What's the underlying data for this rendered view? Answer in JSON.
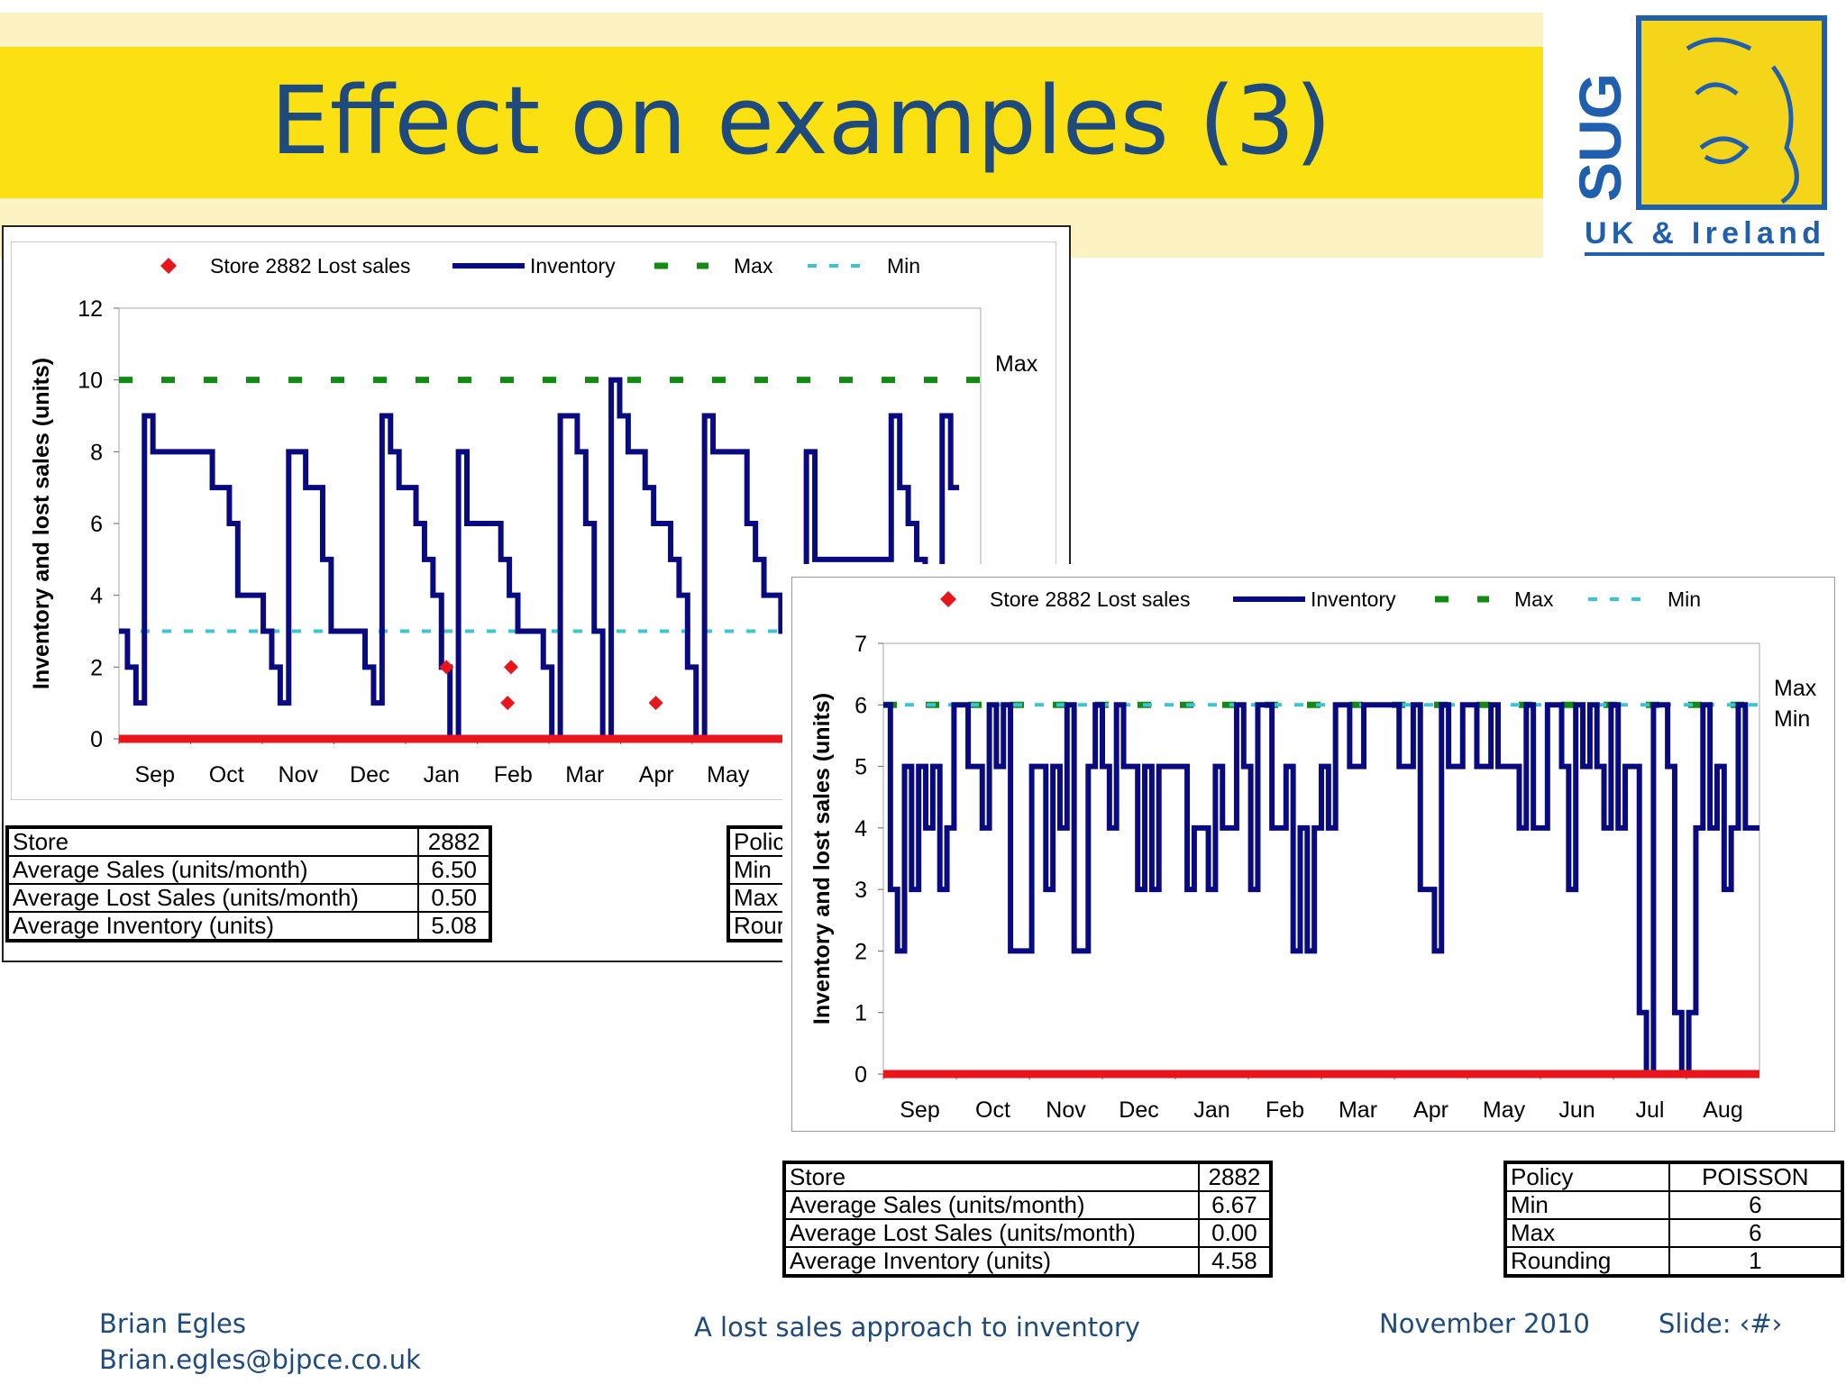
{
  "title": "Effect on examples (3)",
  "logo": {
    "letters": "SUG",
    "text": "UK & Ireland"
  },
  "chart_data": [
    {
      "type": "line",
      "legend": [
        "Store 2882 Lost sales",
        "Inventory",
        "Max",
        "Min"
      ],
      "legend_position": "top",
      "ylabel": "Inventory and lost sales (units)",
      "ylim": [
        0,
        12
      ],
      "yticks": [
        0,
        2,
        4,
        6,
        8,
        10,
        12
      ],
      "xticks": [
        "Sep",
        "Oct",
        "Nov",
        "Dec",
        "Jan",
        "Feb",
        "Mar",
        "Apr",
        "May"
      ],
      "right_labels": [
        "Max"
      ],
      "max": 10,
      "min": 3,
      "series": [
        {
          "name": "Inventory",
          "color": "#0a0a80",
          "values": [
            3,
            2,
            1,
            9,
            8,
            8,
            8,
            8,
            8,
            8,
            8,
            7,
            7,
            6,
            4,
            4,
            4,
            3,
            2,
            1,
            8,
            8,
            7,
            7,
            5,
            3,
            3,
            3,
            3,
            2,
            1,
            9,
            8,
            7,
            7,
            6,
            5,
            4,
            2,
            0,
            8,
            6,
            6,
            6,
            6,
            5,
            4,
            3,
            3,
            3,
            2,
            0,
            9,
            9,
            8,
            6,
            3,
            0,
            10,
            9,
            8,
            8,
            7,
            6,
            6,
            5,
            4,
            2,
            0,
            9,
            8,
            8,
            8,
            8,
            6,
            5,
            4,
            4,
            3,
            3,
            1,
            8,
            5,
            5,
            5,
            5,
            5,
            5,
            5,
            5,
            5,
            9,
            7,
            6,
            5,
            4,
            0,
            9,
            7
          ]
        },
        {
          "name": "Store 2882 Lost sales",
          "color": "#e8161c",
          "points": [
            [
              0.38,
              2
            ],
            [
              0.451,
              1
            ],
            [
              0.455,
              2
            ],
            [
              0.623,
              1
            ]
          ]
        }
      ],
      "stats_table": [
        [
          "Store",
          "2882"
        ],
        [
          "Average Sales (units/month)",
          "6.50"
        ],
        [
          "Average Lost Sales (units/month)",
          "0.50"
        ],
        [
          "Average Inventory (units)",
          "5.08"
        ]
      ],
      "policy_table_visible": [
        "Polic",
        "Min",
        "Max",
        "Rour"
      ]
    },
    {
      "type": "line",
      "legend": [
        "Store 2882 Lost sales",
        "Inventory",
        "Max",
        "Min"
      ],
      "legend_position": "top",
      "ylabel": "Inventory and lost sales (units)",
      "ylim": [
        0,
        7
      ],
      "yticks": [
        0,
        1,
        2,
        3,
        4,
        5,
        6,
        7
      ],
      "xticks": [
        "Sep",
        "Oct",
        "Nov",
        "Dec",
        "Jan",
        "Feb",
        "Mar",
        "Apr",
        "May",
        "Jun",
        "Jul",
        "Aug"
      ],
      "right_labels": [
        "Max",
        "Min"
      ],
      "max": 6,
      "min": 6,
      "series": [
        {
          "name": "Inventory",
          "color": "#0a0a80",
          "values": [
            6,
            3,
            2,
            5,
            3,
            5,
            4,
            5,
            3,
            4,
            6,
            6,
            5,
            5,
            4,
            6,
            5,
            6,
            2,
            2,
            2,
            5,
            5,
            3,
            5,
            4,
            6,
            2,
            2,
            5,
            6,
            5,
            4,
            6,
            5,
            5,
            3,
            5,
            3,
            5,
            5,
            5,
            5,
            3,
            4,
            4,
            3,
            5,
            4,
            4,
            6,
            5,
            3,
            6,
            6,
            4,
            4,
            5,
            2,
            4,
            2,
            4,
            5,
            4,
            6,
            6,
            5,
            5,
            6,
            6,
            6,
            6,
            6,
            5,
            5,
            6,
            3,
            3,
            2,
            6,
            5,
            5,
            6,
            6,
            5,
            5,
            6,
            5,
            5,
            5,
            4,
            6,
            4,
            4,
            6,
            6,
            5,
            3,
            6,
            5,
            6,
            5,
            4,
            6,
            4,
            5,
            5,
            1,
            0,
            6,
            6,
            5,
            1,
            0,
            1,
            4,
            6,
            4,
            5,
            3,
            4,
            6,
            4,
            4
          ],
          "flat_dips": false
        },
        {
          "name": "Store 2882 Lost sales",
          "color": "#e8161c",
          "points": []
        }
      ],
      "stats_table": [
        [
          "Store",
          "2882"
        ],
        [
          "Average Sales (units/month)",
          "6.67"
        ],
        [
          "Average Lost Sales (units/month)",
          "0.00"
        ],
        [
          "Average Inventory (units)",
          "4.58"
        ]
      ],
      "policy_table": [
        [
          "Policy",
          "POISSON"
        ],
        [
          "Min",
          "6"
        ],
        [
          "Max",
          "6"
        ],
        [
          "Rounding",
          "1"
        ]
      ]
    }
  ],
  "footer": {
    "author": "Brian Egles",
    "email": "Brian.egles@bjpce.co.uk",
    "subtitle": "A lost sales approach to inventory",
    "date": "November 2010",
    "slide": "Slide: ‹#›"
  },
  "colors": {
    "inventory": "#0a0a80",
    "lost_sales": "#e8161c",
    "max": "#138a13",
    "min": "#3cc4d4",
    "title": "#1f4a7d",
    "band": "#fbe012"
  }
}
